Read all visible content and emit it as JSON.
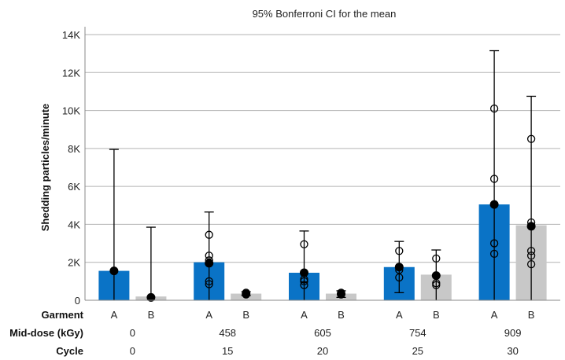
{
  "chart_data": {
    "type": "bar",
    "title": "95% Bonferroni CI for the mean",
    "ylabel": "Shedding particles/minute",
    "ylim": [
      0,
      14000
    ],
    "y_ticks": [
      {
        "value": 0,
        "label": "0"
      },
      {
        "value": 2000,
        "label": "2K"
      },
      {
        "value": 4000,
        "label": "4K"
      },
      {
        "value": 6000,
        "label": "6K"
      },
      {
        "value": 8000,
        "label": "8K"
      },
      {
        "value": 10000,
        "label": "10K"
      },
      {
        "value": 12000,
        "label": "12K"
      },
      {
        "value": 14000,
        "label": "14K"
      }
    ],
    "grid": true,
    "colors": {
      "A": "#0a73c6",
      "B": "#c8c8c8",
      "mean_point": "#000000",
      "individual_point": "#000000"
    },
    "row_labels": {
      "garment": "Garment",
      "mid_dose": "Mid-dose (kGy)",
      "cycle": "Cycle"
    },
    "groups": [
      {
        "mid_dose": "0",
        "cycle": "0",
        "bars": [
          {
            "garment": "A",
            "value": 1550,
            "mean": 1550,
            "ci": [
              0,
              7950
            ],
            "points": []
          },
          {
            "garment": "B",
            "value": 200,
            "mean": 150,
            "ci": [
              0,
              3850
            ],
            "points": []
          }
        ]
      },
      {
        "mid_dose": "458",
        "cycle": "15",
        "bars": [
          {
            "garment": "A",
            "value": 2000,
            "mean": 1950,
            "ci": [
              0,
              4650
            ],
            "points": [
              3450,
              2350,
              2100,
              1000,
              850
            ]
          },
          {
            "garment": "B",
            "value": 350,
            "mean": 330,
            "ci": [
              250,
              450
            ],
            "points": [
              400,
              300
            ]
          }
        ]
      },
      {
        "mid_dose": "605",
        "cycle": "20",
        "bars": [
          {
            "garment": "A",
            "value": 1450,
            "mean": 1450,
            "ci": [
              0,
              3650
            ],
            "points": [
              2950,
              1100,
              1000,
              800
            ]
          },
          {
            "garment": "B",
            "value": 350,
            "mean": 330,
            "ci": [
              150,
              500
            ],
            "points": [
              400,
              300
            ]
          }
        ]
      },
      {
        "mid_dose": "754",
        "cycle": "25",
        "bars": [
          {
            "garment": "A",
            "value": 1750,
            "mean": 1750,
            "ci": [
              400,
              3100
            ],
            "points": [
              2600,
              1600,
              1200
            ]
          },
          {
            "garment": "B",
            "value": 1350,
            "mean": 1300,
            "ci": [
              0,
              2650
            ],
            "points": [
              2200,
              900,
              800
            ]
          }
        ]
      },
      {
        "mid_dose": "909",
        "cycle": "30",
        "bars": [
          {
            "garment": "A",
            "value": 5050,
            "mean": 5050,
            "ci": [
              0,
              13150
            ],
            "points": [
              10100,
              6400,
              3000,
              2450
            ]
          },
          {
            "garment": "B",
            "value": 3950,
            "mean": 3900,
            "ci": [
              0,
              10750
            ],
            "points": [
              8500,
              4100,
              2600,
              2350,
              1900
            ]
          }
        ]
      }
    ]
  }
}
